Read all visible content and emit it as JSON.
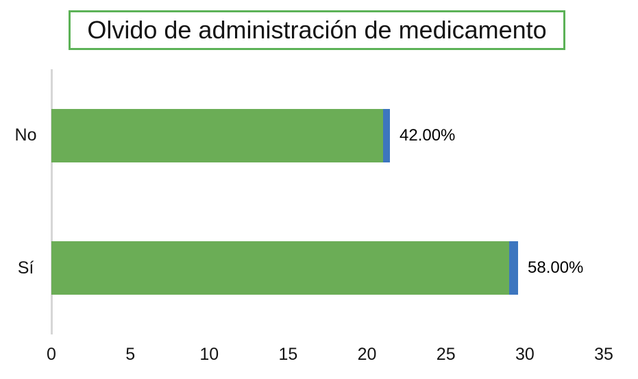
{
  "chart_data": {
    "type": "bar",
    "orientation": "horizontal",
    "title": "Olvido de administración de medicamento",
    "categories": [
      "No",
      "Sí"
    ],
    "series": [
      {
        "name": "series_green",
        "color": "#6bad56",
        "values": [
          21,
          29
        ]
      },
      {
        "name": "series_blue",
        "color": "#3d76bf",
        "values": [
          0.42,
          0.58
        ]
      }
    ],
    "data_labels": [
      "42.00%",
      "58.00%"
    ],
    "xlabel": "",
    "ylabel": "",
    "xlim": [
      0,
      35
    ],
    "x_ticks": [
      0,
      5,
      10,
      15,
      20,
      25,
      30,
      35
    ],
    "grid": false,
    "legend": false
  },
  "colors": {
    "title_border": "#5cb257",
    "axis_line": "#d6d6d6",
    "text": "#141414",
    "background": "#ffffff"
  }
}
